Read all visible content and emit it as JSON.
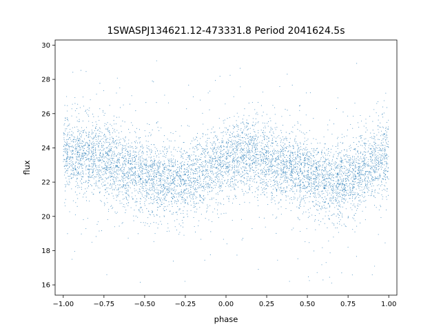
{
  "chart_data": {
    "type": "scatter",
    "title": "1SWASPJ134621.12-473331.8 Period 2041624.5s",
    "xlabel": "phase",
    "ylabel": "flux",
    "xlim": [
      -1.05,
      1.05
    ],
    "ylim": [
      15.4,
      30.3
    ],
    "x_ticks": [
      -1.0,
      -0.75,
      -0.5,
      -0.25,
      0.0,
      0.25,
      0.5,
      0.75,
      1.0
    ],
    "x_tick_labels": [
      "−1.00",
      "−0.75",
      "−0.50",
      "−0.25",
      "0.00",
      "0.25",
      "0.50",
      "0.75",
      "1.00"
    ],
    "y_ticks": [
      16,
      18,
      20,
      22,
      24,
      26,
      28,
      30
    ],
    "y_tick_labels": [
      "16",
      "18",
      "20",
      "22",
      "24",
      "26",
      "28",
      "30"
    ],
    "grid": false,
    "legend": "none",
    "marker_color": "#1f77b4",
    "series": [
      {
        "x_range": [
          -1.0,
          1.0
        ],
        "y_range": [
          16.0,
          29.6
        ],
        "profile_phase": [
          -1.0,
          -0.9,
          -0.8,
          -0.7,
          -0.6,
          -0.5,
          -0.4,
          -0.3,
          -0.2,
          -0.1,
          0.0,
          0.1,
          0.2,
          0.3,
          0.4,
          0.5,
          0.6,
          0.7,
          0.8,
          0.9,
          1.0
        ],
        "profile_median_flux": [
          23.5,
          23.6,
          23.4,
          23.0,
          22.7,
          22.5,
          22.2,
          22.0,
          22.3,
          22.8,
          23.2,
          23.6,
          23.4,
          23.1,
          22.8,
          22.4,
          22.0,
          21.9,
          22.4,
          23.0,
          23.5
        ]
      }
    ]
  }
}
